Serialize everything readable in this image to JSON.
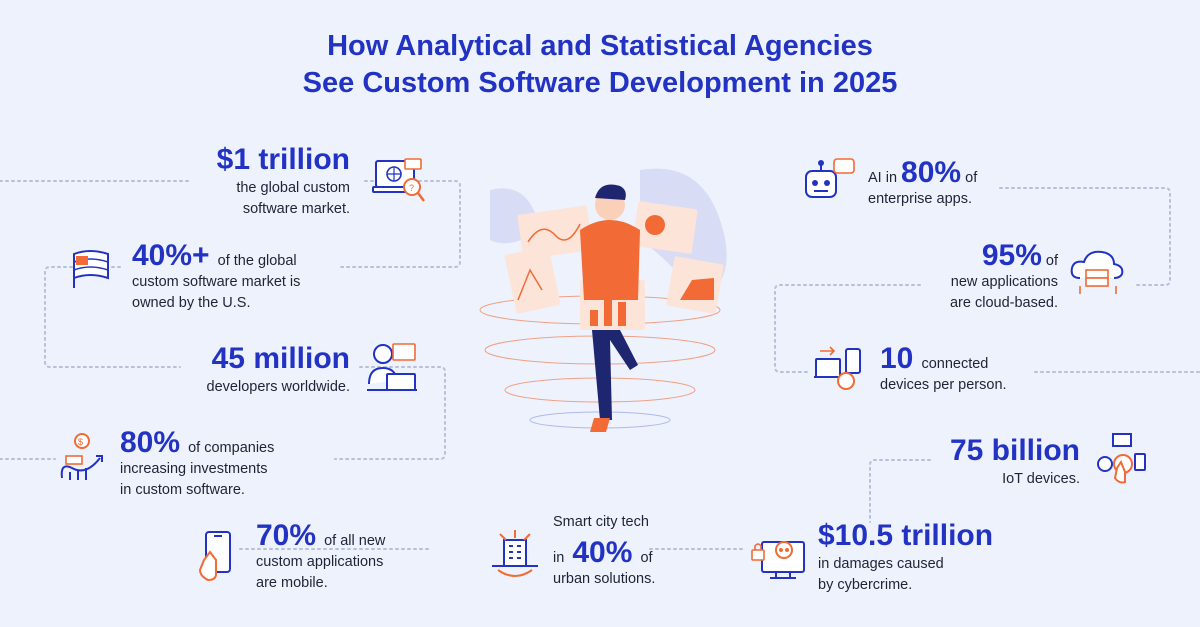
{
  "title": {
    "line1": "How Analytical and Statistical Agencies",
    "line2": "See Custom Software Development in 2025"
  },
  "colors": {
    "accent": "#2233c4",
    "orange": "#f26a35",
    "background": "#eef2fc"
  },
  "stats": {
    "trillion": {
      "value": "$1 trillion",
      "line1": "the global custom",
      "line2": "software market.",
      "icon": "laptop-search-icon"
    },
    "us": {
      "value": "40%+",
      "suffix": "of the global",
      "line2": "custom software market is",
      "line3": "owned by the U.S.",
      "icon": "us-flag-icon"
    },
    "devs": {
      "value": "45 million",
      "line1": "developers worldwide.",
      "icon": "developer-icon"
    },
    "invest": {
      "value": "80%",
      "suffix": "of companies",
      "line2": "increasing investments",
      "line3": "in custom software.",
      "icon": "growth-chart-icon"
    },
    "mobile": {
      "value": "70%",
      "suffix": "of all new",
      "line2": "custom applications",
      "line3": "are mobile.",
      "icon": "smartphone-tap-icon"
    },
    "smartcity": {
      "line1": "Smart city tech",
      "prefix": "in",
      "value": "40%",
      "suffix": "of",
      "line3": "urban solutions.",
      "icon": "smart-city-icon"
    },
    "ai": {
      "prefix": "AI in",
      "value": "80%",
      "suffix": "of",
      "line2": "enterprise apps.",
      "icon": "robot-chat-icon"
    },
    "cloud": {
      "value": "95%",
      "suffix": "of",
      "line2": "new applications",
      "line3": "are cloud-based.",
      "icon": "cloud-server-icon"
    },
    "devices": {
      "value": "10",
      "suffix": "connected",
      "line2": "devices per person.",
      "icon": "connected-devices-icon"
    },
    "iot": {
      "value": "75 billion",
      "line1": "IoT devices.",
      "icon": "iot-devices-icon"
    },
    "cyber": {
      "value": "$10.5 trillion",
      "line1": "in damages caused",
      "line2": "by cybercrime.",
      "icon": "cybercrime-skull-icon"
    }
  }
}
